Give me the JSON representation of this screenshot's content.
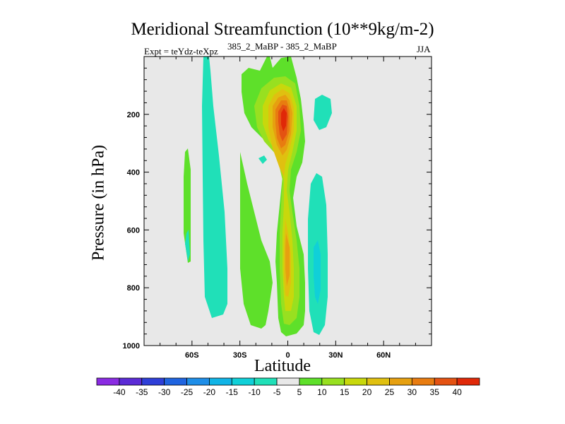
{
  "title": "Meridional Streamfunction (10**9kg/m-2)",
  "left_string": "Expt = teYdz-teXpz",
  "center_string": "385_2_MaBP - 385_2_MaBP",
  "right_string": "JJA",
  "chart_data": {
    "type": "contour",
    "title": "Meridional Streamfunction (10**9kg/m-2)",
    "xlabel": "Latitude",
    "ylabel": "Pressure (in hPa)",
    "xlim": [
      -90,
      90
    ],
    "ylim": [
      1000,
      0
    ],
    "x_ticks": [
      -60,
      -30,
      0,
      30,
      60
    ],
    "x_tick_labels": [
      "60S",
      "30S",
      "0",
      "30N",
      "60N"
    ],
    "y_ticks": [
      200,
      400,
      600,
      800,
      1000
    ],
    "y_tick_labels": [
      "200",
      "400",
      "600",
      "800",
      "1000"
    ],
    "colorbar": {
      "levels": [
        -40,
        -35,
        -30,
        -25,
        -20,
        -15,
        -10,
        -5,
        5,
        10,
        15,
        20,
        25,
        30,
        35,
        40
      ],
      "labels": [
        "-40",
        "-35",
        "-30",
        "-25",
        "-20",
        "-15",
        "-10",
        "-5",
        "5",
        "10",
        "15",
        "20",
        "25",
        "30",
        "35",
        "40"
      ],
      "colors": [
        "#8a2be2",
        "#5b2bd6",
        "#2e3fd8",
        "#1f64e0",
        "#1e8ee8",
        "#10b4e6",
        "#10d0d8",
        "#20e0b8",
        "#e8e8e8",
        "#5ee02a",
        "#98e020",
        "#c8d80c",
        "#e0c010",
        "#e6a010",
        "#e87c10",
        "#e45212",
        "#e02808"
      ]
    },
    "features": [
      {
        "name": "southern-cell-60S",
        "value": -5,
        "lat_range": [
          -66,
          -61
        ],
        "p_range": [
          330,
          720
        ]
      },
      {
        "name": "southern-cell-40S",
        "value": -5,
        "lat_range": [
          -52,
          -36
        ],
        "p_range": [
          0,
          910
        ]
      },
      {
        "name": "tropical-positive-cell",
        "value": 40,
        "lat_range": [
          -20,
          10
        ],
        "p_range": [
          0,
          970
        ],
        "max_center_p": 200
      },
      {
        "name": "northern-negative-cell",
        "value": -10,
        "lat_range": [
          15,
          25
        ],
        "p_range": [
          400,
          960
        ]
      },
      {
        "name": "upper-nh-blob",
        "value": -5,
        "lat_range": [
          14,
          21
        ],
        "p_range": [
          130,
          260
        ]
      }
    ]
  }
}
